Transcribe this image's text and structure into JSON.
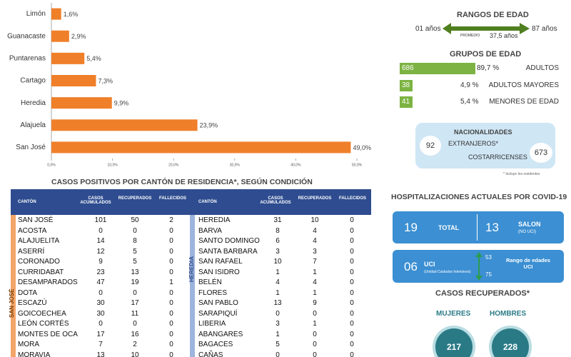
{
  "chart_data": {
    "type": "bar",
    "categories": [
      "Limón",
      "Guanacaste",
      "Puntarenas",
      "Cartago",
      "Heredia",
      "Alajuela",
      "San José"
    ],
    "values": [
      1.6,
      2.9,
      5.4,
      7.3,
      9.9,
      23.9,
      49.0
    ],
    "value_labels": [
      "1,6%",
      "2,9%",
      "5,4%",
      "7,3%",
      "9,9%",
      "23,9%",
      "49,0%"
    ],
    "color": "#f07f2a",
    "xlim": [
      0,
      50
    ],
    "xticks": [
      {
        "value": 0,
        "label": "0,0%"
      },
      {
        "value": 10,
        "label": "10,0%"
      },
      {
        "value": 20,
        "label": "20,0%"
      },
      {
        "value": 30,
        "label": "30,0%"
      },
      {
        "value": 40,
        "label": "40,0%"
      },
      {
        "value": 50,
        "label": "50,0%"
      }
    ]
  },
  "age_range": {
    "title": "RANGOS DE EDAD",
    "min": "01 años",
    "mean_label": "PROMEDIO",
    "mean": "37,5 años",
    "max": "87 años"
  },
  "age_groups": {
    "title": "GRUPOS DE EDAD",
    "rows": [
      [
        "686",
        "89,7 %",
        "ADULTOS"
      ],
      [
        "38",
        "4,9 %",
        "ADULTOS MAYORES"
      ],
      [
        "41",
        "5,4 %",
        "MENORES DE EDAD"
      ]
    ]
  },
  "nationalities": {
    "title": "NACIONALIDADES",
    "foreign": "92",
    "foreign_label": "EXTRANJEROS*",
    "local_label": "COSTARRICENSES",
    "local": "673",
    "note": "* Incluye los residentes"
  },
  "table": {
    "title": "CASOS POSITIVOS POR CANTÓN DE RESIDENCIA*, SEGÚN CONDICIÓN",
    "headers": [
      "CANTÓN",
      "CASOS ACUMULADOS",
      "RECUPERADOS",
      "FALLECIDOS"
    ],
    "left_province": "SAN JOSÉ",
    "right_province": "HEREDIA",
    "left": [
      [
        "SAN JOSÉ",
        "101",
        "50",
        "2"
      ],
      [
        "ACOSTA",
        "0",
        "0",
        "0"
      ],
      [
        "ALAJUELITA",
        "14",
        "8",
        "0"
      ],
      [
        "ASERRÍ",
        "12",
        "5",
        "0"
      ],
      [
        "CORONADO",
        "9",
        "5",
        "0"
      ],
      [
        "CURRIDABAT",
        "23",
        "13",
        "0"
      ],
      [
        "DESAMPARADOS",
        "47",
        "19",
        "1"
      ],
      [
        "DOTA",
        "0",
        "0",
        "0"
      ],
      [
        "ESCAZÚ",
        "30",
        "17",
        "0"
      ],
      [
        "GOICOECHEA",
        "30",
        "11",
        "0"
      ],
      [
        "LEÓN CORTÉS",
        "0",
        "0",
        "0"
      ],
      [
        "MONTES DE OCA",
        "17",
        "16",
        "0"
      ],
      [
        "MORA",
        "7",
        "2",
        "0"
      ],
      [
        "MORAVIA",
        "13",
        "10",
        "0"
      ]
    ],
    "right": [
      [
        "HEREDIA",
        "31",
        "10",
        "0"
      ],
      [
        "BARVA",
        "8",
        "4",
        "0"
      ],
      [
        "SANTO DOMINGO",
        "6",
        "4",
        "0"
      ],
      [
        "SANTA BARBARA",
        "3",
        "3",
        "0"
      ],
      [
        "SAN RAFAEL",
        "10",
        "7",
        "0"
      ],
      [
        "SAN ISIDRO",
        "1",
        "1",
        "0"
      ],
      [
        "BELÉN",
        "4",
        "4",
        "0"
      ],
      [
        "FLORES",
        "1",
        "1",
        "0"
      ],
      [
        "SAN PABLO",
        "13",
        "9",
        "0"
      ],
      [
        "SARAPIQUÍ",
        "0",
        "0",
        "0"
      ],
      [
        "LIBERIA",
        "3",
        "1",
        "0"
      ],
      [
        "ABANGARES",
        "1",
        "0",
        "0"
      ],
      [
        "BAGACES",
        "5",
        "0",
        "0"
      ],
      [
        "CAÑAS",
        "0",
        "0",
        "0"
      ]
    ]
  },
  "hospital": {
    "title": "HOSPITALIZACIONES ACTUALES POR COVID-19",
    "total": "19",
    "total_label": "TOTAL",
    "ward": "13",
    "ward_label": "SALON",
    "ward_note": "(NO UCI)",
    "icu": "06",
    "icu_label": "UCI",
    "icu_note": "(Unidad Cuidados Intensivos)",
    "icu_age_min": "53",
    "icu_age_max": "75",
    "icu_age_label": "Rango de edades UCI"
  },
  "recovered": {
    "title": "CASOS RECUPERADOS*",
    "women_label": "MUJERES",
    "men_label": "HOMBRES",
    "women": "217",
    "men": "228"
  }
}
